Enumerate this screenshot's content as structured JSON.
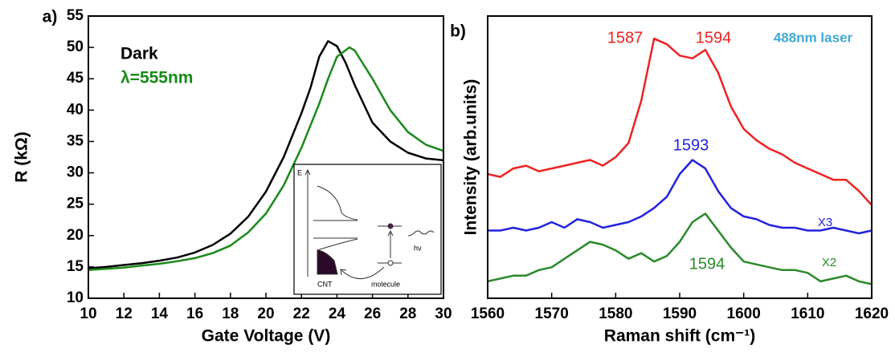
{
  "chart_data": [
    {
      "type": "line",
      "title": "a)",
      "xlabel": "Gate Voltage (V)",
      "ylabel": "R (kΩ)",
      "xlim": [
        10,
        30
      ],
      "xticks": [
        10,
        12,
        14,
        16,
        18,
        20,
        22,
        24,
        26,
        28,
        30
      ],
      "ylim": [
        10,
        55
      ],
      "yticks": [
        10,
        15,
        20,
        25,
        30,
        35,
        40,
        45,
        50,
        55
      ],
      "series": [
        {
          "name": "Dark",
          "color": "#000000",
          "x": [
            10,
            11,
            12,
            13,
            14,
            15,
            16,
            17,
            18,
            19,
            20,
            21,
            22,
            22.5,
            23,
            23.5,
            24,
            24.5,
            25,
            26,
            27,
            28,
            29,
            30
          ],
          "values": [
            14.8,
            15.0,
            15.3,
            15.6,
            16.0,
            16.5,
            17.3,
            18.5,
            20.3,
            23.0,
            27.0,
            32.5,
            39.5,
            43.5,
            48.5,
            51,
            50.2,
            47.5,
            44,
            38,
            35,
            33.2,
            32.3,
            32
          ]
        },
        {
          "name": "λ=555nm",
          "color": "#1a8a1a",
          "x": [
            10,
            11,
            12,
            13,
            14,
            15,
            16,
            17,
            18,
            19,
            20,
            21,
            22,
            23,
            23.5,
            24,
            24.7,
            25,
            26,
            27,
            28,
            29,
            30
          ],
          "values": [
            14.5,
            14.7,
            14.9,
            15.2,
            15.5,
            15.9,
            16.4,
            17.2,
            18.4,
            20.5,
            23.5,
            28,
            34,
            41,
            45,
            48.5,
            50,
            49.5,
            45,
            40,
            36.5,
            34.5,
            33.5
          ]
        }
      ]
    },
    {
      "type": "line",
      "title": "b)",
      "xlabel": "Raman shift (cm⁻¹)",
      "ylabel": "Intensity (arb.units)",
      "xlim": [
        1560,
        1620
      ],
      "xticks": [
        1560,
        1570,
        1580,
        1590,
        1600,
        1610,
        1620
      ],
      "ylim": [
        0,
        100
      ],
      "x": [
        1560,
        1562,
        1564,
        1566,
        1568,
        1570,
        1572,
        1574,
        1576,
        1578,
        1580,
        1582,
        1584,
        1586,
        1588,
        1590,
        1592,
        1594,
        1596,
        1598,
        1600,
        1602,
        1604,
        1606,
        1608,
        1610,
        1612,
        1614,
        1616,
        1618,
        1620
      ],
      "series": [
        {
          "color": "#ee2222",
          "values": [
            44,
            43,
            46,
            47,
            45,
            46,
            47,
            48,
            49,
            47,
            50,
            55,
            70,
            92,
            90,
            86,
            85,
            88,
            80,
            68,
            60,
            56,
            53,
            51,
            48,
            46,
            44,
            42,
            42,
            38,
            33
          ]
        },
        {
          "color": "#2222dd",
          "values": [
            24,
            24,
            25,
            24,
            25,
            27,
            25,
            28,
            27,
            25,
            26,
            27,
            29,
            32,
            36,
            44,
            49,
            46,
            38,
            32,
            29,
            28,
            26,
            25,
            25,
            24,
            24,
            25,
            24,
            23,
            24
          ]
        },
        {
          "color": "#2a8a2a",
          "values": [
            6,
            7,
            8,
            8,
            10,
            11,
            14,
            17,
            20,
            19,
            17,
            14,
            16,
            13,
            15,
            20,
            27,
            30,
            24,
            18,
            13,
            12,
            11,
            10,
            10,
            9,
            6,
            7,
            8,
            6,
            5
          ]
        }
      ],
      "annotations": [
        {
          "text": "1587",
          "color": "#ee2222"
        },
        {
          "text": "1594",
          "color": "#ee2222"
        },
        {
          "text": "1593",
          "color": "#2222dd"
        },
        {
          "text": "1594",
          "color": "#2a8a2a"
        },
        {
          "text": "X3",
          "color": "#2222dd"
        },
        {
          "text": "X2",
          "color": "#2a8a2a"
        },
        {
          "text": "488nm laser",
          "color": "#3fa9d5"
        }
      ]
    }
  ],
  "inset": {
    "energy": "E",
    "photon": "hν",
    "cnt": "CNT",
    "molecule": "molecule"
  }
}
